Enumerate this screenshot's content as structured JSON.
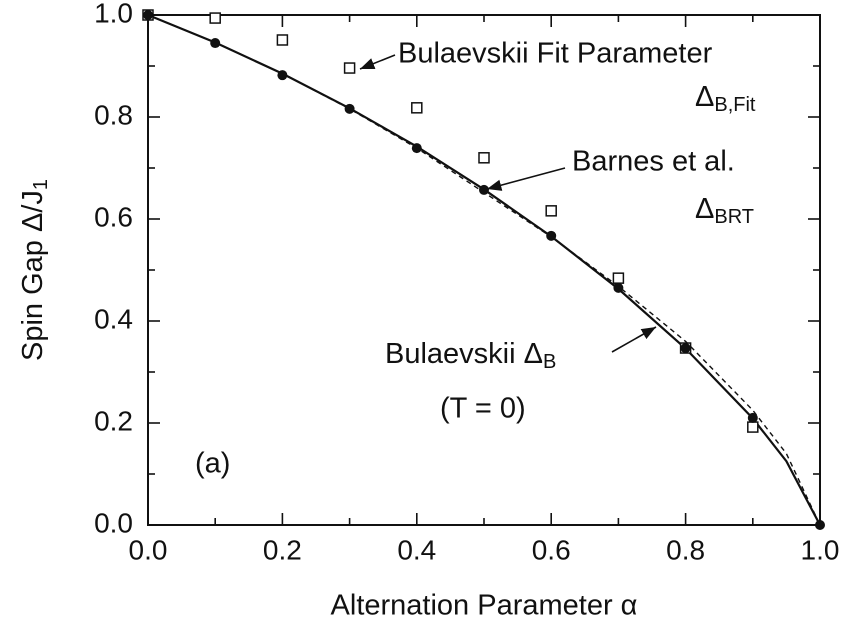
{
  "chart_data": {
    "type": "scatter-line",
    "xlabel": "Alternation Parameter α",
    "ylabel": {
      "text": "Spin Gap Δ/J",
      "sub": "1"
    },
    "xlim": [
      0,
      1
    ],
    "ylim": [
      0,
      1
    ],
    "xticks": [
      {
        "value": 0,
        "label": "0.0"
      },
      0.2,
      0.4,
      0.6,
      0.8,
      {
        "value": 1,
        "label": "1.0"
      }
    ],
    "yticks": [
      {
        "value": 0,
        "label": "0.0"
      },
      0.2,
      0.4,
      0.6,
      0.8,
      {
        "value": 1,
        "label": "1.0"
      }
    ],
    "points": [
      {
        "marker": "open-square",
        "color": "#111111",
        "x": [
          0,
          0.1,
          0.2,
          0.3,
          0.4,
          0.5,
          0.6,
          0.7,
          0.8,
          0.9
        ],
        "values": [
          1.0,
          0.994,
          0.951,
          0.896,
          0.818,
          0.72,
          0.616,
          0.484,
          0.347,
          0.192
        ]
      },
      {
        "marker": "filled-circle",
        "color": "#111111",
        "x": [
          0,
          0.1,
          0.2,
          0.3,
          0.4,
          0.5,
          0.6,
          0.7,
          0.8,
          0.9,
          1.0
        ],
        "values": [
          1.0,
          0.945,
          0.882,
          0.816,
          0.739,
          0.657,
          0.567,
          0.465,
          0.347,
          0.21,
          0.0
        ]
      }
    ],
    "curves": [
      {
        "style": "solid",
        "color": "#111111",
        "x": [
          0,
          0.1,
          0.2,
          0.3,
          0.4,
          0.5,
          0.6,
          0.7,
          0.8,
          0.9,
          0.95,
          1.0
        ],
        "values": [
          1.0,
          0.946,
          0.885,
          0.817,
          0.742,
          0.658,
          0.566,
          0.463,
          0.346,
          0.209,
          0.125,
          0.0
        ]
      },
      {
        "style": "dashed",
        "color": "#111111",
        "x": [
          0,
          0.1,
          0.2,
          0.3,
          0.4,
          0.5,
          0.6,
          0.7,
          0.8,
          0.9,
          0.95,
          1.0
        ],
        "values": [
          1.0,
          0.946,
          0.885,
          0.816,
          0.739,
          0.652,
          0.565,
          0.468,
          0.36,
          0.225,
          0.14,
          0.0
        ]
      }
    ],
    "annotations": [
      {
        "text": "Bulaevskii Fit Parameter"
      },
      {
        "text": "Δ",
        "sub": "B,Fit"
      },
      {
        "text": "Barnes et al."
      },
      {
        "text": "Δ",
        "sub": "BRT"
      },
      {
        "text": "Bulaevskii Δ",
        "sub": "B"
      },
      {
        "text": "(T = 0)"
      },
      {
        "text": "(a)"
      }
    ]
  }
}
